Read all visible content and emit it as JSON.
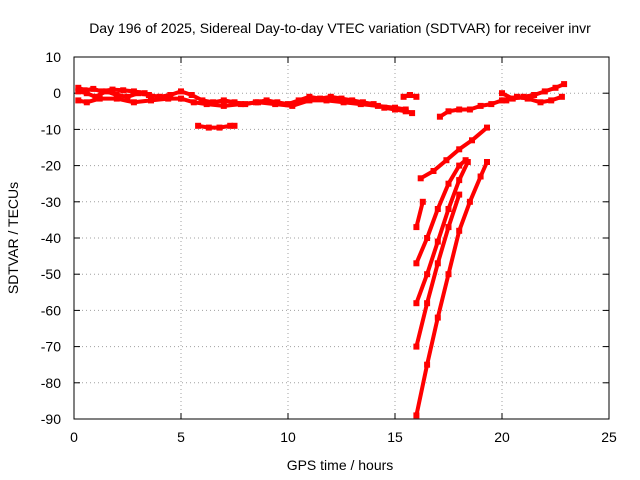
{
  "chart_data": {
    "type": "scatter",
    "title": "Day 196 of 2025, Sidereal Day-to-day VTEC variation (SDTVAR) for receiver invr",
    "xlabel": "GPS time / hours",
    "ylabel": "SDTVAR / TECUs",
    "xlim": [
      0,
      25
    ],
    "ylim": [
      -90,
      10
    ],
    "xticks": [
      0,
      5,
      10,
      15,
      20,
      25
    ],
    "yticks": [
      10,
      0,
      -10,
      -20,
      -30,
      -40,
      -50,
      -60,
      -70,
      -80,
      -90
    ],
    "grid": true,
    "legend": "none",
    "color": "#ff0000",
    "series": [
      {
        "x": [
          0.2,
          0.6,
          1.0,
          1.5,
          2.0,
          2.5,
          3.0,
          3.5,
          4.0,
          4.5,
          5.0,
          5.5,
          6.0,
          6.5,
          7.0,
          7.5,
          8.0,
          8.5,
          9.0,
          9.5,
          10.0,
          10.5,
          11.0,
          11.5,
          12.0,
          12.5,
          13.0,
          13.5,
          14.0,
          14.5,
          15.0,
          15.5,
          15.8
        ],
        "y": [
          0.5,
          0.0,
          -1.0,
          0.5,
          -0.5,
          -1.0,
          0.0,
          -0.5,
          -1.0,
          -0.5,
          0.5,
          -0.5,
          -2.0,
          -2.5,
          -2.0,
          -2.5,
          -3.0,
          -2.5,
          -2.0,
          -2.5,
          -3.0,
          -2.0,
          -1.0,
          -1.5,
          -1.0,
          -1.5,
          -2.0,
          -2.5,
          -3.0,
          -4.0,
          -4.5,
          -5.0,
          -5.5
        ]
      },
      {
        "x": [
          0.2,
          0.6,
          1.2,
          2.0,
          2.8,
          3.6,
          4.4,
          5.0,
          5.6,
          6.2,
          7.0,
          7.8,
          8.6,
          9.4,
          10.2,
          11.0,
          11.8,
          12.6,
          13.4,
          14.2,
          15.0,
          15.5
        ],
        "y": [
          -2.0,
          -2.5,
          -1.5,
          -1.5,
          -2.5,
          -2.0,
          -1.5,
          -1.5,
          -2.5,
          -3.0,
          -3.5,
          -3.0,
          -2.5,
          -3.0,
          -3.5,
          -2.0,
          -2.0,
          -2.5,
          -3.0,
          -3.5,
          -4.0,
          -4.5
        ]
      },
      {
        "x": [
          0.2,
          0.5,
          0.9,
          1.3,
          1.8,
          2.3,
          2.8,
          3.3
        ],
        "y": [
          1.5,
          0.8,
          1.2,
          0.5,
          1.0,
          0.8,
          0.5,
          0.0
        ]
      },
      {
        "x": [
          5.8,
          6.3,
          6.8,
          7.3,
          7.5
        ],
        "y": [
          -9.0,
          -9.5,
          -9.5,
          -9.0,
          -9.0
        ]
      },
      {
        "x": [
          15.4,
          15.7,
          16.0
        ],
        "y": [
          -1.0,
          -0.5,
          -1.0
        ]
      },
      {
        "x": [
          17.1,
          17.5,
          18.0,
          18.5,
          19.0,
          19.5,
          20.0
        ],
        "y": [
          -6.5,
          -5.0,
          -4.5,
          -4.5,
          -3.5,
          -3.0,
          -2.0
        ]
      },
      {
        "x": [
          20.0,
          20.5,
          21.0,
          21.5,
          22.0,
          22.5,
          22.9
        ],
        "y": [
          0.0,
          -1.5,
          -1.0,
          -0.5,
          0.5,
          1.5,
          2.5
        ]
      },
      {
        "x": [
          20.2,
          20.7,
          21.2,
          21.8,
          22.3,
          22.8
        ],
        "y": [
          -2.0,
          -1.0,
          -1.5,
          -2.5,
          -2.0,
          -1.0
        ]
      },
      {
        "x": [
          16.0,
          16.3
        ],
        "y": [
          -37.0,
          -30.0
        ]
      },
      {
        "x": [
          16.2,
          16.8,
          17.4,
          18.0,
          18.6,
          19.3
        ],
        "y": [
          -23.5,
          -21.5,
          -18.5,
          -15.5,
          -13.0,
          -9.5
        ]
      },
      {
        "x": [
          16.0,
          16.5,
          17.0,
          17.5,
          18.0,
          18.3
        ],
        "y": [
          -47.0,
          -40.0,
          -32.0,
          -25.0,
          -20.0,
          -18.5
        ]
      },
      {
        "x": [
          16.0,
          16.5,
          17.0,
          17.5,
          18.0,
          18.4
        ],
        "y": [
          -58.0,
          -50.0,
          -41.0,
          -32.0,
          -24.0,
          -19.0
        ]
      },
      {
        "x": [
          16.0,
          16.5,
          17.0,
          17.5,
          18.0
        ],
        "y": [
          -70.0,
          -58.0,
          -47.0,
          -37.0,
          -28.0
        ]
      },
      {
        "x": [
          16.0,
          16.5,
          17.0,
          17.5,
          18.0,
          18.5,
          19.0,
          19.3
        ],
        "y": [
          -89.0,
          -75.0,
          -62.0,
          -50.0,
          -38.0,
          -30.0,
          -23.0,
          -19.0
        ]
      }
    ]
  }
}
